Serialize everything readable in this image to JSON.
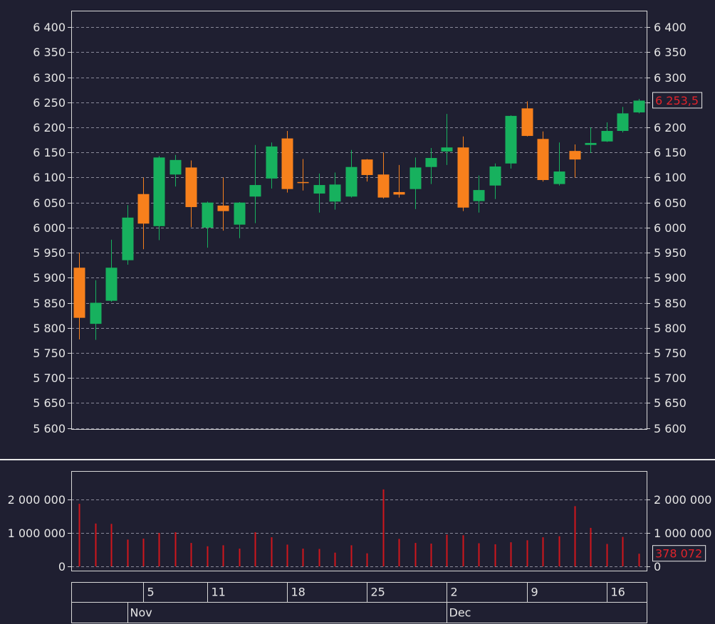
{
  "chart_data": [
    {
      "type": "candlestick",
      "open": [
        5920,
        5808,
        5854,
        5935,
        6067,
        6003,
        6106,
        6120,
        6000,
        6044,
        6006,
        6062,
        6098,
        6178,
        6091,
        6068,
        6052,
        6062,
        6136,
        6106,
        6071,
        6077,
        6121,
        6152,
        6160,
        6053,
        6084,
        6128,
        6238,
        6177,
        6087,
        6153,
        6165,
        6172,
        6193,
        6230
      ],
      "high": [
        5950,
        5895,
        5976,
        6045,
        6100,
        6143,
        6145,
        6134,
        6052,
        6100,
        6051,
        6165,
        6170,
        6193,
        6137,
        6108,
        6110,
        6155,
        6137,
        6150,
        6125,
        6140,
        6159,
        6227,
        6182,
        6104,
        6128,
        6224,
        6252,
        6192,
        6170,
        6166,
        6200,
        6210,
        6241,
        6257
      ],
      "low": [
        5777,
        5776,
        5852,
        5926,
        5957,
        5975,
        6082,
        6001,
        5960,
        5994,
        5979,
        6009,
        6078,
        6070,
        6074,
        6030,
        6036,
        6060,
        6092,
        6058,
        6060,
        6037,
        6087,
        6125,
        6033,
        6030,
        6057,
        6118,
        6182,
        6092,
        6084,
        6100,
        6149,
        6171,
        6190,
        6228
      ],
      "close": [
        5820,
        5850,
        5920,
        6020,
        6008,
        6140,
        6135,
        6041,
        6050,
        6033,
        6050,
        6085,
        6162,
        6077,
        6089,
        6085,
        6086,
        6121,
        6105,
        6060,
        6066,
        6120,
        6139,
        6160,
        6040,
        6075,
        6122,
        6223,
        6183,
        6095,
        6112,
        6136,
        6169,
        6193,
        6228,
        6253.5
      ],
      "up_color": "#17b15e",
      "down_color": "#f7801c",
      "last_label": "6 253,5",
      "last_label_color": "#e0242b",
      "ylim": [
        5598,
        6433
      ],
      "yticks": [
        {
          "value": 5600,
          "label": "5 600"
        },
        {
          "value": 5650,
          "label": "5 650"
        },
        {
          "value": 5700,
          "label": "5 700"
        },
        {
          "value": 5750,
          "label": "5 750"
        },
        {
          "value": 5800,
          "label": "5 800"
        },
        {
          "value": 5850,
          "label": "5 850"
        },
        {
          "value": 5900,
          "label": "5 900"
        },
        {
          "value": 5950,
          "label": "5 950"
        },
        {
          "value": 6000,
          "label": "6 000"
        },
        {
          "value": 6050,
          "label": "6 050"
        },
        {
          "value": 6100,
          "label": "6 100"
        },
        {
          "value": 6150,
          "label": "6 150"
        },
        {
          "value": 6200,
          "label": "6 200"
        },
        {
          "value": 6250,
          "label": "6 250"
        },
        {
          "value": 6300,
          "label": "6 300"
        },
        {
          "value": 6350,
          "label": "6 350"
        },
        {
          "value": 6400,
          "label": "6 400"
        }
      ],
      "grid": true
    },
    {
      "type": "bar",
      "categories": [
        null,
        null,
        null,
        null,
        "5",
        null,
        null,
        null,
        "11",
        null,
        null,
        null,
        null,
        "18",
        null,
        null,
        null,
        null,
        "25",
        null,
        null,
        null,
        null,
        "2",
        null,
        null,
        null,
        null,
        "9",
        null,
        null,
        null,
        null,
        "16",
        null,
        null
      ],
      "months": [
        "Nov",
        "Dec"
      ],
      "values": [
        1870000,
        1280000,
        1270000,
        800000,
        830000,
        1000000,
        1020000,
        700000,
        600000,
        630000,
        530000,
        1020000,
        870000,
        650000,
        530000,
        520000,
        410000,
        630000,
        390000,
        2300000,
        820000,
        700000,
        680000,
        950000,
        930000,
        690000,
        660000,
        720000,
        780000,
        870000,
        900000,
        1800000,
        1150000,
        670000,
        880000,
        378072
      ],
      "color": "#d0161c",
      "last_label": "378 072",
      "last_label_color": "#e0242b",
      "ylim": [
        -128000,
        2850000
      ],
      "yticks": [
        0,
        {
          "value": 1000000,
          "label": "1 000 000"
        },
        {
          "value": 2000000,
          "label": "2 000 000"
        }
      ],
      "grid": true
    }
  ]
}
